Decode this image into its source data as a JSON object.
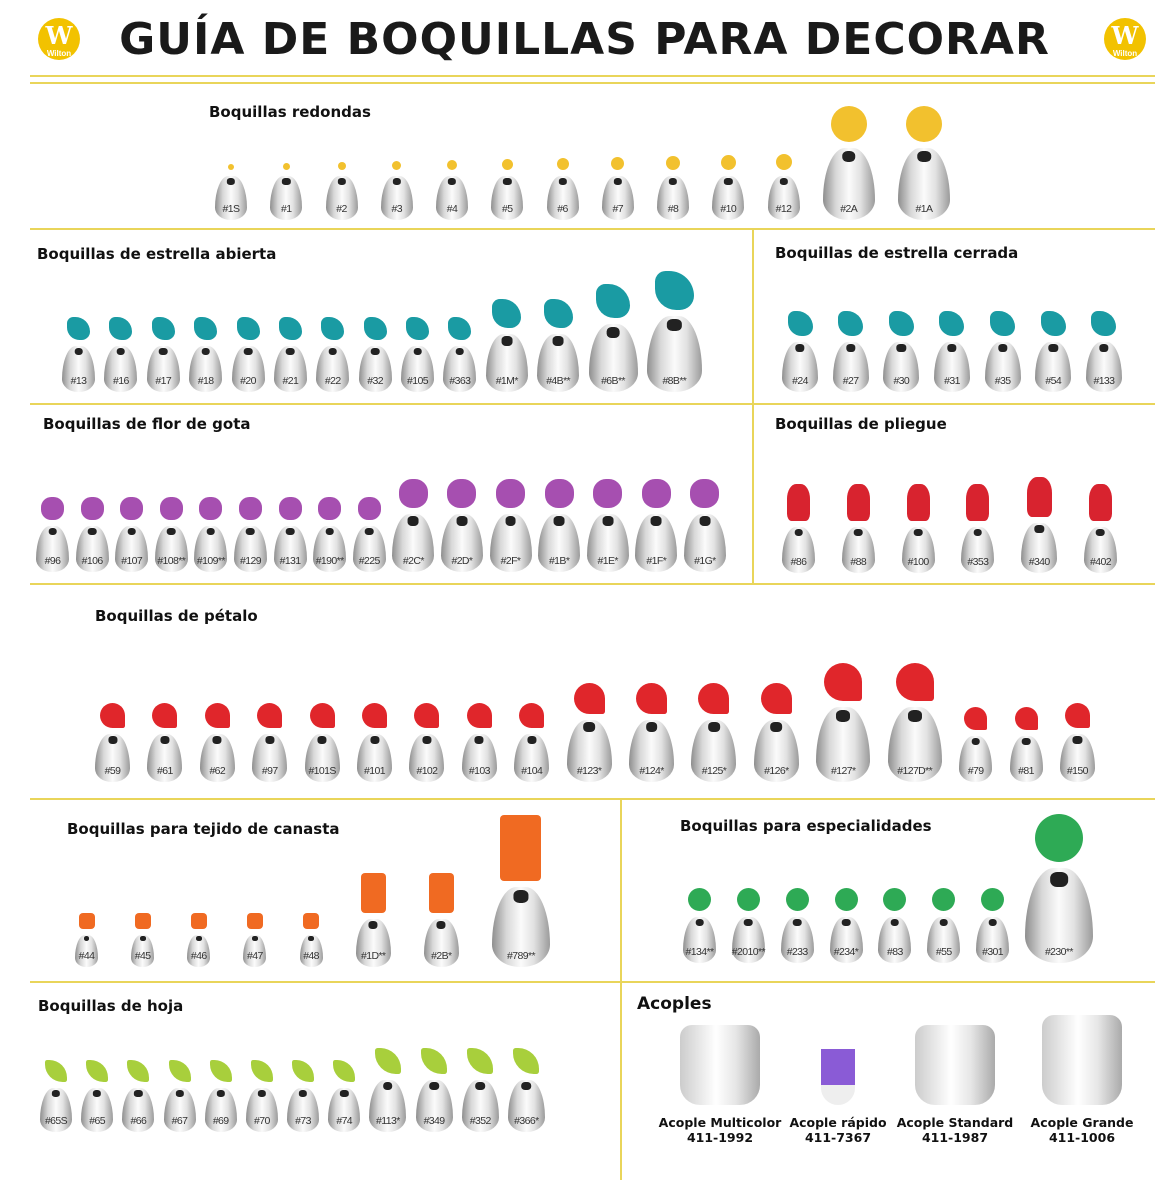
{
  "header": {
    "title": "GUÍA DE BOQUILLAS PARA DECORAR",
    "logo_text": "W",
    "logo_brand": "Wilton",
    "accent": "#e9d55a"
  },
  "sections": [
    {
      "id": "redondas",
      "title": "Boquillas redondas",
      "color": "#f2c12e",
      "tips": [
        "#1S",
        "#1",
        "#2",
        "#3",
        "#4",
        "#5",
        "#6",
        "#7",
        "#8",
        "#10",
        "#12",
        "#2A",
        "#1A"
      ]
    },
    {
      "id": "estrella-abierta",
      "title": "Boquillas de estrella abierta",
      "color": "#1a9ba3",
      "tips": [
        "#13",
        "#16",
        "#17",
        "#18",
        "#20",
        "#21",
        "#22",
        "#32",
        "#105",
        "#363",
        "#1M*",
        "#4B**",
        "#6B**",
        "#8B**"
      ]
    },
    {
      "id": "estrella-cerrada",
      "title": "Boquillas de estrella cerrada",
      "color": "#1a9ba3",
      "tips": [
        "#24",
        "#27",
        "#30",
        "#31",
        "#35",
        "#54",
        "#133"
      ]
    },
    {
      "id": "flor-de-gota",
      "title": "Boquillas de flor de gota",
      "color": "#a64fb0",
      "tips": [
        "#96",
        "#106",
        "#107",
        "#108**",
        "#109**",
        "#129",
        "#131",
        "#190**",
        "#225",
        "#2C*",
        "#2D*",
        "#2F*",
        "#1B*",
        "#1E*",
        "#1F*",
        "#1G*"
      ]
    },
    {
      "id": "pliegue",
      "title": "Boquillas de pliegue",
      "color": "#d8232f",
      "tips": [
        "#86",
        "#88",
        "#100",
        "#353",
        "#340",
        "#402"
      ]
    },
    {
      "id": "petalo",
      "title": "Boquillas de pétalo",
      "color": "#e0262b",
      "tips": [
        "#59",
        "#61",
        "#62",
        "#97",
        "#101S",
        "#101",
        "#102",
        "#103",
        "#104",
        "#123*",
        "#124*",
        "#125*",
        "#126*",
        "#127*",
        "#127D**",
        "#79",
        "#81",
        "#150"
      ]
    },
    {
      "id": "canasta",
      "title": "Boquillas para tejido de canasta",
      "color": "#f06a22",
      "tips": [
        "#44",
        "#45",
        "#46",
        "#47",
        "#48",
        "#1D**",
        "#2B*",
        "#789**"
      ]
    },
    {
      "id": "especialidades",
      "title": "Boquillas para especialidades",
      "color": "#2eaa55",
      "tips": [
        "#134**",
        "#2010**",
        "#233",
        "#234*",
        "#83",
        "#55",
        "#301",
        "#230**"
      ]
    },
    {
      "id": "hoja",
      "title": "Boquillas de hoja",
      "color": "#a8cf3c",
      "tips": [
        "#65S",
        "#65",
        "#66",
        "#67",
        "#69",
        "#70",
        "#73",
        "#74",
        "#113*",
        "#349",
        "#352",
        "#366*"
      ]
    }
  ],
  "acoples": {
    "title": "Acoples",
    "items": [
      {
        "name": "Acople Multicolor",
        "code": "411-1992",
        "color": "#e8e8e8"
      },
      {
        "name": "Acople rápido",
        "code": "411-7367",
        "color": "#8a5bd6"
      },
      {
        "name": "Acople Standard",
        "code": "411-1987",
        "color": "#f2f2f2"
      },
      {
        "name": "Acople Grande",
        "code": "411-1006",
        "color": "#e6e6e6"
      }
    ]
  }
}
